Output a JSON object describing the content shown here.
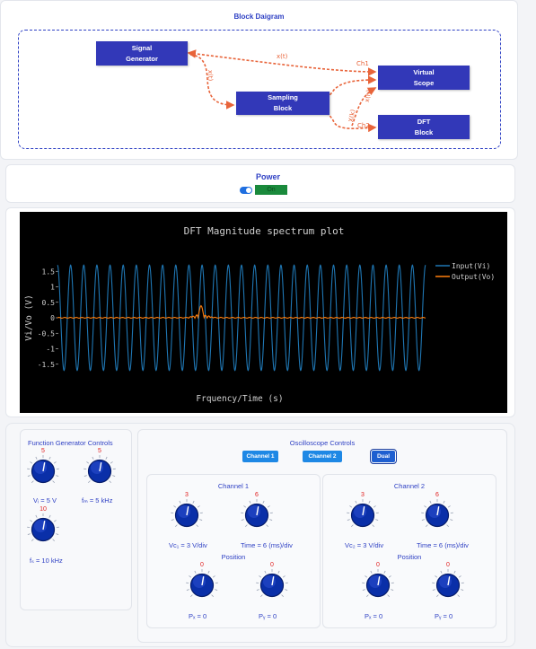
{
  "diagram": {
    "title": "Block Daigram",
    "blocks": [
      {
        "id": "siggen",
        "line1": "Signal",
        "line2": "Generator"
      },
      {
        "id": "sampling",
        "line1": "Sampling",
        "line2": "Block"
      },
      {
        "id": "scope",
        "line1": "Virtual",
        "line2": "Scope"
      },
      {
        "id": "dft",
        "line1": "DFT",
        "line2": "Block"
      }
    ],
    "labels": {
      "xt": "x(t)",
      "xt_vertical": "x(t)",
      "ch1": "Ch1",
      "ch2": "Ch2",
      "xn": "x(n)",
      "xk": "X(k)"
    }
  },
  "power": {
    "title": "Power",
    "state": "On",
    "on": true
  },
  "chart_data": {
    "type": "line",
    "title": "DFT Magnitude spectrum plot",
    "xlabel": "Frquency/Time (s)",
    "ylabel": "Vi/Vo (V)",
    "yticks": [
      "1.5",
      "1",
      "0.5",
      "0",
      "-0.5",
      "-1",
      "-1.5"
    ],
    "ylim": [
      -1.7,
      1.7
    ],
    "grid": false,
    "legend_position": "top-right",
    "series": [
      {
        "name": "Input(Vi)",
        "kind": "sine",
        "amplitude": 1.7,
        "cycles": 28,
        "color": "#1f77b4"
      },
      {
        "name": "Output(Vo)",
        "kind": "spectrum",
        "peak": 0.4,
        "peak_at": 0.39,
        "color": "#ff7f0e"
      }
    ]
  },
  "function_generator": {
    "title": "Function Generator Controls",
    "knobs": [
      {
        "name": "vi",
        "value": "5",
        "label": "Vᵢ = 5 V"
      },
      {
        "name": "fm",
        "value": "5",
        "label": "fₘ = 5 kHz"
      },
      {
        "name": "fs",
        "value": "10",
        "label": "fₛ = 10 kHz"
      }
    ]
  },
  "oscilloscope": {
    "title": "Oscilloscope Controls",
    "buttons": [
      {
        "label": "Channel 1"
      },
      {
        "label": "Channel 2"
      },
      {
        "label": "Dual",
        "active": true
      }
    ],
    "channel1": {
      "title": "Channel 1",
      "volt": {
        "value": "3",
        "label": "Vc₁ = 3 V/div"
      },
      "time": {
        "value": "6",
        "label": "Time = 6 (ms)/div"
      },
      "position_title": "Position",
      "px": {
        "value": "0",
        "label": "Pₓ = 0"
      },
      "py": {
        "value": "0",
        "label": "Pᵧ = 0"
      }
    },
    "channel2": {
      "title": "Channel 2",
      "volt": {
        "value": "3",
        "label": "Vc₂ = 3 V/div"
      },
      "time": {
        "value": "6",
        "label": "Time = 6 (ms)/div"
      },
      "position_title": "Position",
      "px": {
        "value": "0",
        "label": "Pₓ = 0"
      },
      "py": {
        "value": "0",
        "label": "Pᵧ = 0"
      }
    }
  }
}
